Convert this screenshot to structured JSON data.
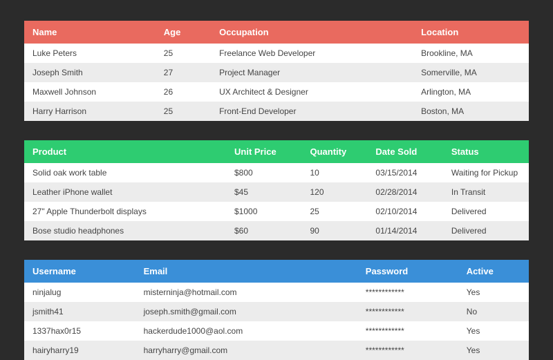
{
  "colors": {
    "page_bg": "#2b2b2b",
    "row_odd": "#ffffff",
    "row_even": "#ececec",
    "header_red": "#e96a5f",
    "header_green": "#2ecc71",
    "header_blue": "#3a8fd8",
    "header_text": "#ffffff",
    "body_text": "#444444"
  },
  "tables": {
    "people": {
      "columns": [
        "Name",
        "Age",
        "Occupation",
        "Location"
      ],
      "col_widths": [
        "26%",
        "11%",
        "40%",
        "23%"
      ],
      "rows": [
        [
          "Luke Peters",
          "25",
          "Freelance Web Developer",
          "Brookline, MA"
        ],
        [
          "Joseph Smith",
          "27",
          "Project Manager",
          "Somerville, MA"
        ],
        [
          "Maxwell Johnson",
          "26",
          "UX Architect & Designer",
          "Arlington, MA"
        ],
        [
          "Harry Harrison",
          "25",
          "Front-End Developer",
          "Boston, MA"
        ]
      ]
    },
    "products": {
      "columns": [
        "Product",
        "Unit Price",
        "Quantity",
        "Date Sold",
        "Status"
      ],
      "col_widths": [
        "40%",
        "15%",
        "13%",
        "15%",
        "17%"
      ],
      "rows": [
        [
          "Solid oak work table",
          "$800",
          "10",
          "03/15/2014",
          "Waiting for Pickup"
        ],
        [
          "Leather iPhone wallet",
          "$45",
          "120",
          "02/28/2014",
          "In Transit"
        ],
        [
          "27\" Apple Thunderbolt displays",
          "$1000",
          "25",
          "02/10/2014",
          "Delivered"
        ],
        [
          "Bose studio headphones",
          "$60",
          "90",
          "01/14/2014",
          "Delivered"
        ]
      ]
    },
    "users": {
      "columns": [
        "Username",
        "Email",
        "Password",
        "Active"
      ],
      "col_widths": [
        "22%",
        "44%",
        "20%",
        "14%"
      ],
      "rows": [
        [
          "ninjalug",
          "misterninja@hotmail.com",
          "************",
          "Yes"
        ],
        [
          "jsmith41",
          "joseph.smith@gmail.com",
          "************",
          "No"
        ],
        [
          "1337hax0r15",
          "hackerdude1000@aol.com",
          "************",
          "Yes"
        ],
        [
          "hairyharry19",
          "harryharry@gmail.com",
          "************",
          "Yes"
        ]
      ]
    }
  }
}
